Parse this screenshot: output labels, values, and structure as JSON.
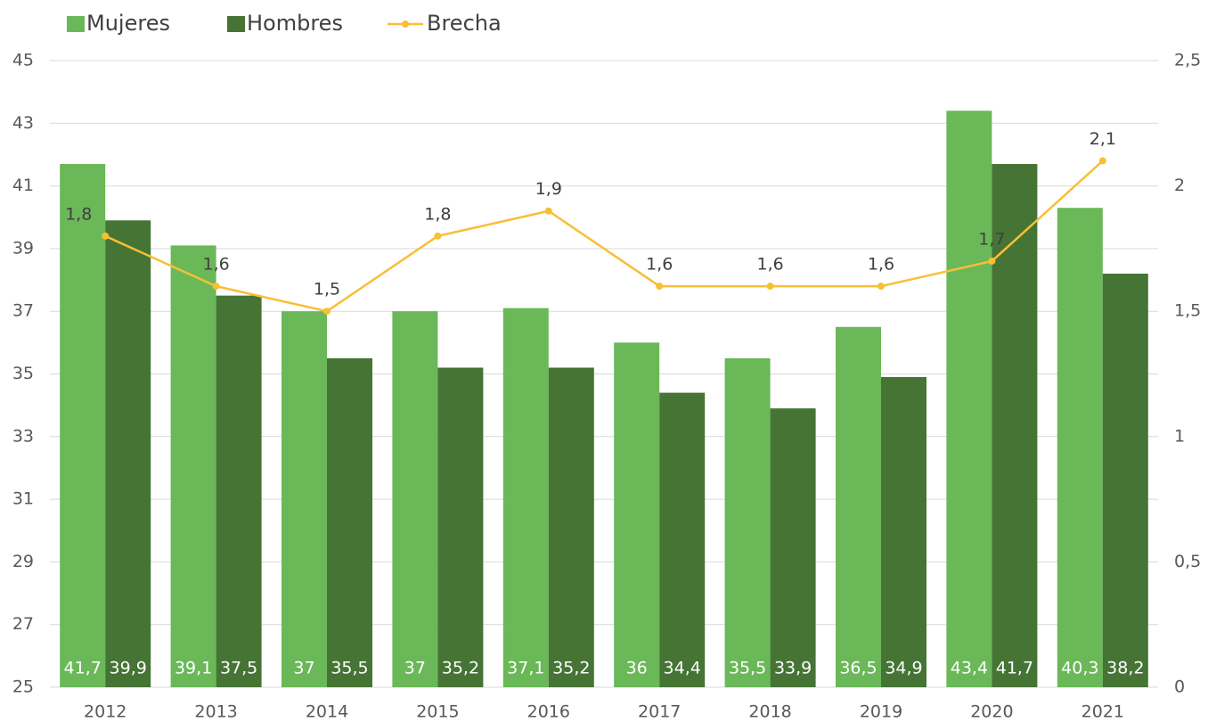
{
  "chart_data": {
    "type": "bar",
    "categories": [
      "2012",
      "2013",
      "2014",
      "2015",
      "2016",
      "2017",
      "2018",
      "2019",
      "2020",
      "2021"
    ],
    "series": [
      {
        "name": "Mujeres",
        "color": "#6ab858",
        "type": "bar",
        "values": [
          41.7,
          39.1,
          37,
          37,
          37.1,
          36,
          35.5,
          36.5,
          43.4,
          40.3
        ],
        "value_labels": [
          "41,7",
          "39,1",
          "37",
          "37",
          "37,1",
          "36",
          "35,5",
          "36,5",
          "43,4",
          "40,3"
        ]
      },
      {
        "name": "Hombres",
        "color": "#457435",
        "type": "bar",
        "values": [
          39.9,
          37.5,
          35.5,
          35.2,
          35.2,
          34.4,
          33.9,
          34.9,
          41.7,
          38.2
        ],
        "value_labels": [
          "39,9",
          "37,5",
          "35,5",
          "35,2",
          "35,2",
          "34,4",
          "33,9",
          "34,9",
          "41,7",
          "38,2"
        ]
      },
      {
        "name": "Brecha",
        "color": "#f8bf35",
        "type": "line",
        "axis": "y2",
        "values": [
          1.8,
          1.6,
          1.5,
          1.8,
          1.9,
          1.6,
          1.6,
          1.6,
          1.7,
          2.1
        ],
        "value_labels": [
          "1,8",
          "1,6",
          "1,5",
          "1,8",
          "1,9",
          "1,6",
          "1,6",
          "1,6",
          "1,7",
          "2,1"
        ]
      }
    ],
    "ylim": [
      25,
      45
    ],
    "yticks": [
      25,
      27,
      29,
      31,
      33,
      35,
      37,
      39,
      41,
      43,
      45
    ],
    "y2lim": [
      0,
      2.5
    ],
    "y2ticks": [
      0,
      {
        "value": 0.5,
        "label": "0,5"
      },
      1,
      {
        "value": 1.5,
        "label": "1,5"
      },
      2,
      {
        "value": 2.5,
        "label": "2,5"
      }
    ],
    "grid": true,
    "legend": "top-left"
  }
}
